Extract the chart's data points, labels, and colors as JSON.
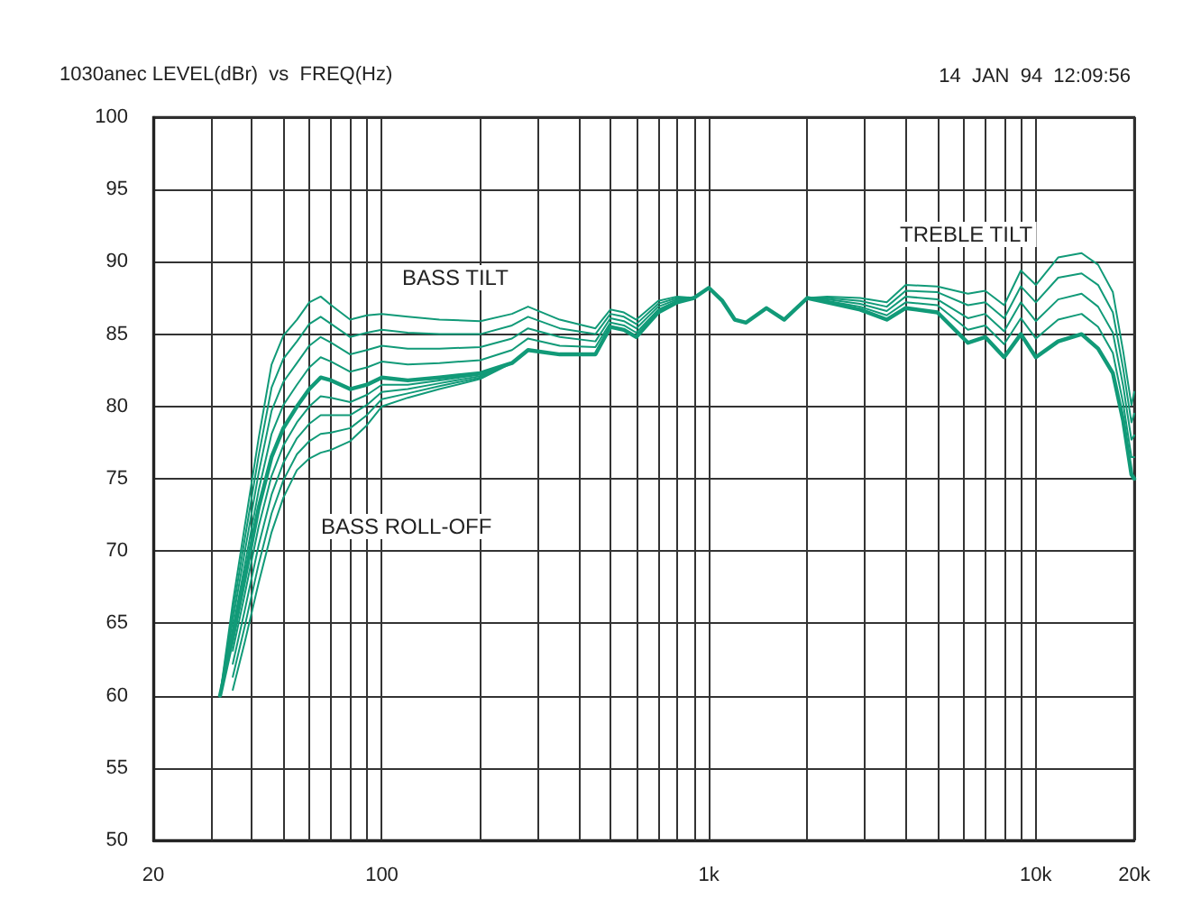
{
  "chart_data": {
    "type": "line",
    "title": "1030anec LEVEL(dBr)  vs  FREQ(Hz)",
    "annotations": [
      "14  JAN  94  12:09:56",
      "BASS TILT",
      "BASS ROLL-OFF",
      "TREBLE TILT"
    ],
    "log": "x",
    "grid": true,
    "marker": "none",
    "line_style": "solid",
    "xlim": [
      20,
      20000
    ],
    "ylim": [
      50,
      100
    ],
    "xticks": [
      20,
      {
        "value": 30,
        "label": null
      },
      {
        "value": 40,
        "label": null
      },
      {
        "value": 50,
        "label": null
      },
      {
        "value": 60,
        "label": null
      },
      {
        "value": 70,
        "label": null
      },
      {
        "value": 80,
        "label": null
      },
      {
        "value": 90,
        "label": null
      },
      100,
      {
        "value": 200,
        "label": null
      },
      {
        "value": 300,
        "label": null
      },
      {
        "value": 400,
        "label": null
      },
      {
        "value": 500,
        "label": null
      },
      {
        "value": 600,
        "label": null
      },
      {
        "value": 700,
        "label": null
      },
      {
        "value": 800,
        "label": null
      },
      {
        "value": 900,
        "label": null
      },
      {
        "value": 1000,
        "label": "1k"
      },
      {
        "value": 2000,
        "label": null
      },
      {
        "value": 3000,
        "label": null
      },
      {
        "value": 4000,
        "label": null
      },
      {
        "value": 5000,
        "label": null
      },
      {
        "value": 6000,
        "label": null
      },
      {
        "value": 7000,
        "label": null
      },
      {
        "value": 8000,
        "label": null
      },
      {
        "value": 9000,
        "label": null
      },
      {
        "value": 10000,
        "label": "10k"
      },
      {
        "value": 20000,
        "label": "20k"
      }
    ],
    "yticks": [
      50,
      55,
      60,
      65,
      70,
      75,
      80,
      85,
      90,
      95,
      100
    ],
    "x": [
      32,
      35,
      38,
      42,
      46,
      50,
      55,
      60,
      65,
      70,
      80,
      90,
      100,
      120,
      150,
      200,
      250,
      280,
      350,
      450,
      500,
      550,
      600,
      700,
      800,
      900,
      1000,
      1100,
      1200,
      1300,
      1500,
      1700,
      2000,
      2300,
      2900,
      3500,
      4000,
      5000,
      6200,
      7000,
      8000,
      9000,
      10000,
      11700,
      13800,
      15500,
      17200,
      18500,
      19600,
      20000
    ],
    "series": [
      {
        "color": "#119a78",
        "values": [
          60,
          64,
          68,
          73,
          76.5,
          78.5,
          80,
          81.2,
          82,
          81.8,
          81.2,
          81.5,
          82,
          81.8,
          82,
          82.3,
          83,
          83.9,
          83.6,
          83.6,
          85.5,
          85.3,
          84.8,
          86.5,
          87.2,
          87.5,
          88.2,
          87.3,
          86,
          85.8,
          86.8,
          86,
          87.5,
          87.2,
          86.7,
          86,
          86.8,
          86.5,
          84.4,
          84.8,
          83.4,
          85,
          83.4,
          84.5,
          85,
          84,
          82.3,
          79,
          75.3,
          75
        ]
      },
      {
        "color": "#119a78",
        "values": [
          60,
          64.6,
          68.9,
          74.2,
          78.1,
          80.1,
          81.5,
          82.7,
          83.4,
          83.1,
          82.4,
          82.7,
          83.1,
          82.9,
          83,
          83.2,
          83.9,
          84.7,
          84.2,
          84.1,
          85.8,
          85.6,
          85.1,
          86.7,
          87.3,
          87.5,
          88.2,
          87.3,
          86,
          85.8,
          86.8,
          86,
          87.5,
          87.3,
          86.9,
          86.3,
          87.2,
          87,
          85.3,
          85.6,
          84.3,
          86.1,
          84.7,
          86,
          86.4,
          85.5,
          83.7,
          80.2,
          76.5,
          76.5
        ]
      },
      {
        "color": "#119a78",
        "values": [
          60,
          65.2,
          69.8,
          75.4,
          79.7,
          81.7,
          83,
          84.2,
          84.8,
          84.4,
          83.6,
          83.9,
          84.2,
          84,
          84,
          84.1,
          84.7,
          85.4,
          84.8,
          84.5,
          86.1,
          85.9,
          85.4,
          86.9,
          87.4,
          87.5,
          88.2,
          87.3,
          86,
          85.8,
          86.8,
          86,
          87.5,
          87.4,
          87.1,
          86.6,
          87.6,
          87.4,
          86.1,
          86.4,
          85.2,
          87.2,
          85.9,
          87.4,
          87.8,
          86.9,
          85.1,
          81.4,
          77.7,
          78
        ]
      },
      {
        "color": "#119a78",
        "values": [
          60,
          65.8,
          70.7,
          76.6,
          81.3,
          83.3,
          84.5,
          85.7,
          86.2,
          85.7,
          84.8,
          85.1,
          85.3,
          85.1,
          85,
          85,
          85.6,
          86.2,
          85.4,
          85,
          86.4,
          86.2,
          85.7,
          87.1,
          87.5,
          87.5,
          88.2,
          87.3,
          86,
          85.8,
          86.8,
          86,
          87.5,
          87.5,
          87.3,
          86.9,
          88,
          87.9,
          87,
          87.2,
          86.1,
          88.3,
          87.2,
          88.9,
          89.2,
          88.4,
          86.5,
          82.6,
          78.9,
          79.5
        ]
      },
      {
        "color": "#119a78",
        "values": [
          60,
          66.4,
          71.6,
          77.8,
          82.9,
          84.9,
          86,
          87.2,
          87.6,
          87,
          86,
          86.3,
          86.4,
          86.2,
          86,
          85.9,
          86.4,
          86.9,
          86,
          85.4,
          86.7,
          86.5,
          86,
          87.3,
          87.6,
          87.5,
          88.2,
          87.3,
          86,
          85.8,
          86.8,
          86,
          87.5,
          87.6,
          87.5,
          87.2,
          88.4,
          88.3,
          87.8,
          88,
          87,
          89.4,
          88.4,
          90.3,
          90.6,
          89.8,
          87.9,
          83.8,
          80.1,
          81
        ]
      },
      {
        "color": "#119a78",
        "values": [
          null,
          63.1,
          66.9,
          71.7,
          75.2,
          77.3,
          78.9,
          80,
          80.7,
          80.6,
          80.3,
          80.8,
          81.5,
          81.5,
          81.8,
          82.2,
          83,
          83.9,
          83.6,
          83.6,
          85.5,
          85.3,
          84.8,
          86.5,
          87.2,
          87.5,
          88.2,
          87.3,
          86,
          85.8,
          86.8,
          86,
          87.5,
          87.2,
          86.7,
          86,
          86.8,
          86.5,
          84.4,
          84.8,
          83.4,
          85,
          83.4,
          84.5,
          85,
          84,
          82.3,
          79,
          75.3,
          75
        ]
      },
      {
        "color": "#119a78",
        "values": [
          null,
          62.2,
          65.8,
          70.4,
          73.9,
          76.1,
          77.8,
          78.8,
          79.4,
          79.4,
          79.4,
          80.1,
          81,
          81.2,
          81.6,
          82.1,
          83,
          83.9,
          83.6,
          83.6,
          85.5,
          85.3,
          84.8,
          86.5,
          87.2,
          87.5,
          88.2,
          87.3,
          86,
          85.8,
          86.8,
          86,
          87.5,
          87.2,
          86.7,
          86,
          86.8,
          86.5,
          84.4,
          84.8,
          83.4,
          85,
          83.4,
          84.5,
          85,
          84,
          82.3,
          79,
          75.3,
          75
        ]
      },
      {
        "color": "#119a78",
        "values": [
          null,
          61.3,
          64.7,
          69.1,
          72.6,
          74.9,
          76.7,
          77.6,
          78.1,
          78.2,
          78.5,
          79.4,
          80.5,
          80.9,
          81.4,
          82,
          83,
          83.9,
          83.6,
          83.6,
          85.5,
          85.3,
          84.8,
          86.5,
          87.2,
          87.5,
          88.2,
          87.3,
          86,
          85.8,
          86.8,
          86,
          87.5,
          87.2,
          86.7,
          86,
          86.8,
          86.5,
          84.4,
          84.8,
          83.4,
          85,
          83.4,
          84.5,
          85,
          84,
          82.3,
          79,
          75.3,
          75
        ]
      },
      {
        "color": "#119a78",
        "values": [
          null,
          60.4,
          63.6,
          67.8,
          71.3,
          73.7,
          75.6,
          76.4,
          76.8,
          77,
          77.6,
          78.7,
          80,
          80.6,
          81.2,
          81.9,
          83,
          83.9,
          83.6,
          83.6,
          85.5,
          85.3,
          84.8,
          86.5,
          87.2,
          87.5,
          88.2,
          87.3,
          86,
          85.8,
          86.8,
          86,
          87.5,
          87.2,
          86.7,
          86,
          86.8,
          86.5,
          84.4,
          84.8,
          83.4,
          85,
          83.4,
          84.5,
          85,
          84,
          82.3,
          79,
          75.3,
          75
        ]
      }
    ]
  }
}
